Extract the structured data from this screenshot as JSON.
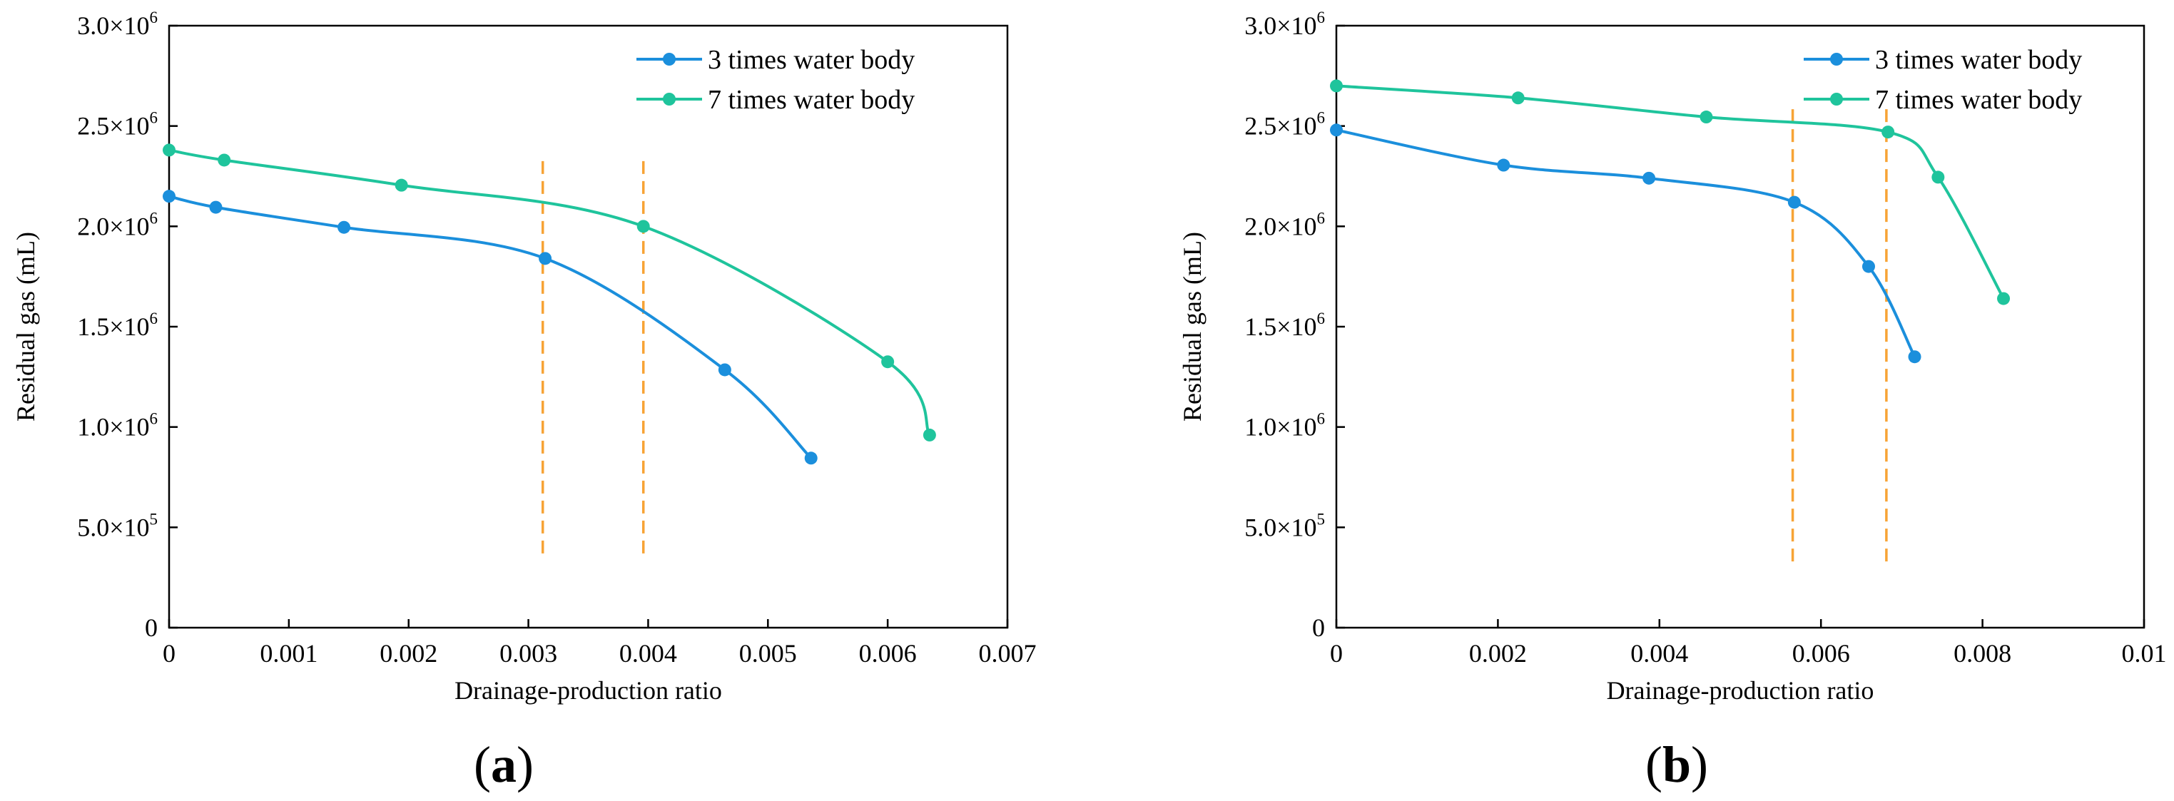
{
  "chart_data": [
    {
      "type": "line",
      "panel": "a",
      "panel_label_text": "a",
      "xlabel": "Drainage-production ratio",
      "ylabel": "Residual gas (mL)",
      "xlim": [
        0,
        0.007
      ],
      "ylim": [
        0,
        3000000
      ],
      "xticks": [
        0,
        0.001,
        0.002,
        0.003,
        0.004,
        0.005,
        0.006,
        0.007
      ],
      "xtick_labels": [
        "0",
        "0.001",
        "0.002",
        "0.003",
        "0.004",
        "0.005",
        "0.006",
        "0.007"
      ],
      "yticks": [
        0,
        500000,
        1000000,
        1500000,
        2000000,
        2500000,
        3000000
      ],
      "ytick_labels": [
        {
          "mant": "0",
          "exp": ""
        },
        {
          "mant": "5.0×10",
          "exp": "5"
        },
        {
          "mant": "1.0×10",
          "exp": "6"
        },
        {
          "mant": "1.5×10",
          "exp": "6"
        },
        {
          "mant": "2.0×10",
          "exp": "6"
        },
        {
          "mant": "2.5×10",
          "exp": "6"
        },
        {
          "mant": "3.0×10",
          "exp": "6"
        }
      ],
      "legend_position": "top-right",
      "series": [
        {
          "name": "3 times water body",
          "color": "#1b8fdc",
          "x": [
            0,
            0.00039,
            0.00146,
            0.00314,
            0.00464,
            0.00536
          ],
          "y": [
            2150000,
            2095000,
            1995000,
            1840000,
            1285000,
            845000
          ]
        },
        {
          "name": "7 times water body",
          "color": "#1fc49c",
          "x": [
            0,
            0.00046,
            0.00194,
            0.00396,
            0.006,
            0.00635
          ],
          "y": [
            2380000,
            2330000,
            2205000,
            2000000,
            1325000,
            960000
          ]
        }
      ],
      "reference_lines": [
        {
          "x": 0.00312,
          "y_from": 370000,
          "y_to": 2350000,
          "color": "#f7a335",
          "style": "dashed"
        },
        {
          "x": 0.00396,
          "y_from": 370000,
          "y_to": 2350000,
          "color": "#f7a335",
          "style": "dashed"
        }
      ]
    },
    {
      "type": "line",
      "panel": "b",
      "panel_label_text": "b",
      "xlabel": "Drainage-production ratio",
      "ylabel": "Residual gas (mL)",
      "xlim": [
        0,
        0.01
      ],
      "ylim": [
        0,
        3000000
      ],
      "xticks": [
        0,
        0.002,
        0.004,
        0.006,
        0.008,
        0.01
      ],
      "xtick_labels": [
        "0",
        "0.002",
        "0.004",
        "0.006",
        "0.008",
        "0.01"
      ],
      "yticks": [
        0,
        500000,
        1000000,
        1500000,
        2000000,
        2500000,
        3000000
      ],
      "ytick_labels": [
        {
          "mant": "0",
          "exp": ""
        },
        {
          "mant": "5.0×10",
          "exp": "5"
        },
        {
          "mant": "1.0×10",
          "exp": "6"
        },
        {
          "mant": "1.5×10",
          "exp": "6"
        },
        {
          "mant": "2.0×10",
          "exp": "6"
        },
        {
          "mant": "2.5×10",
          "exp": "6"
        },
        {
          "mant": "3.0×10",
          "exp": "6"
        }
      ],
      "legend_position": "top-right",
      "series": [
        {
          "name": "3 times water body",
          "color": "#1b8fdc",
          "x": [
            0,
            0.00207,
            0.00387,
            0.00567,
            0.00659,
            0.00716
          ],
          "y": [
            2480000,
            2305000,
            2240000,
            2120000,
            1800000,
            1350000
          ]
        },
        {
          "name": "7 times water body",
          "color": "#1fc49c",
          "x": [
            0,
            0.00225,
            0.00458,
            0.00683,
            0.00745,
            0.00826
          ],
          "y": [
            2700000,
            2640000,
            2545000,
            2470000,
            2245000,
            1640000
          ]
        }
      ],
      "reference_lines": [
        {
          "x": 0.00565,
          "y_from": 330000,
          "y_to": 2600000,
          "color": "#f7a335",
          "style": "dashed"
        },
        {
          "x": 0.00681,
          "y_from": 330000,
          "y_to": 2600000,
          "color": "#f7a335",
          "style": "dashed"
        }
      ]
    }
  ]
}
